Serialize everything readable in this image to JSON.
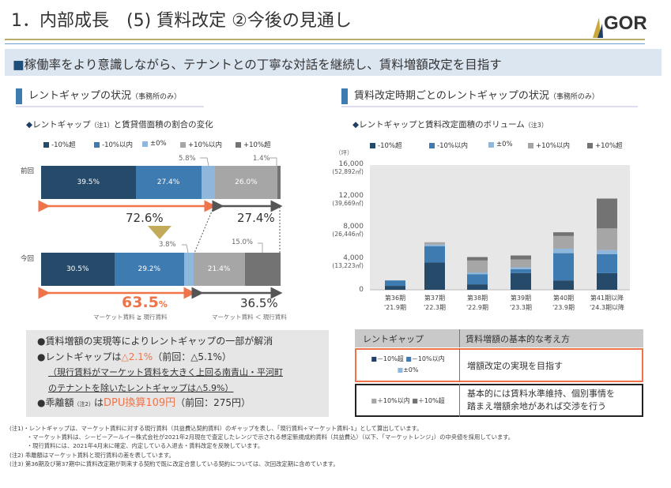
{
  "header": {
    "title": "1．内部成長　(5) 賃料改定 ②今後の見通し",
    "logo": "GOR"
  },
  "banner": {
    "marker": "■",
    "text": "稼働率をより意識しながら、テナントとの丁寧な対話を継続し、賃料増額改定を目指す"
  },
  "colors": {
    "lt10_over": "#264a6a",
    "lt10_within": "#3e7bb0",
    "zero": "#8fb7dc",
    "gt10_within": "#a6a6a6",
    "gt10_over": "#737373",
    "accent": "#f0744a"
  },
  "legend": [
    "-10%超",
    "-10%以内",
    "±0%",
    "+10%以内",
    "+10%超"
  ],
  "left": {
    "section_title": "レントギャップの状況",
    "section_note": "（事務所のみ）",
    "subtitle": "レントギャップ",
    "subtitle_note": "（注1）",
    "subtitle_rest": "と賃貸借面積の割合の変化",
    "rows": [
      {
        "label": "前回",
        "values": [
          39.5,
          27.4,
          5.8,
          26.0,
          1.4
        ],
        "labels": [
          "39.5%",
          "27.4%",
          "5.8%",
          "26.0%",
          "1.4%"
        ]
      },
      {
        "label": "今回",
        "values": [
          30.5,
          29.2,
          3.8,
          21.4,
          15.0
        ],
        "labels": [
          "30.5%",
          "29.2%",
          "3.8%",
          "21.4%",
          "15.0%"
        ]
      }
    ],
    "prev_below": "72.6%",
    "prev_above": "27.4%",
    "cur_below_num": "63.5",
    "cur_below_unit": "%",
    "cur_above": "36.5%",
    "cap_below": "マーケット賃料 ≧ 現行賃料",
    "cap_above": "マーケット賃料 ＜ 現行賃料"
  },
  "right": {
    "section_title": "賃料改定時期ごとのレントギャップの状況",
    "section_note": "（事務所のみ）",
    "subtitle": "レントギャップと賃料改定面積のボリューム",
    "subtitle_note": "（注3）"
  },
  "chart_data": {
    "type": "bar",
    "stacked": true,
    "ylabel": "（坪）",
    "ylim": [
      0,
      16000
    ],
    "yticks": [
      {
        "v": 0,
        "l": "0",
        "s": ""
      },
      {
        "v": 4000,
        "l": "4,000",
        "s": "(13,223㎡)"
      },
      {
        "v": 8000,
        "l": "8,000",
        "s": "(26,446㎡)"
      },
      {
        "v": 12000,
        "l": "12,000",
        "s": "(39,669㎡)"
      },
      {
        "v": 16000,
        "l": "16,000",
        "s": "(52,892㎡)"
      }
    ],
    "categories": [
      [
        "第36期",
        "'21.9期"
      ],
      [
        "第37期",
        "'22.3期"
      ],
      [
        "第38期",
        "'22.9期"
      ],
      [
        "第39期",
        "'23.3期"
      ],
      [
        "第40期",
        "'23.9期"
      ],
      [
        "第41期以降",
        "'24.3期以降"
      ]
    ],
    "series": [
      {
        "name": "-10%超",
        "values": [
          500,
          3500,
          700,
          2140,
          1200,
          2140
        ]
      },
      {
        "name": "-10%以内",
        "values": [
          700,
          2100,
          1300,
          500,
          3500,
          2440
        ]
      },
      {
        "name": "±0%",
        "values": [
          0,
          200,
          230,
          240,
          570,
          510
        ]
      },
      {
        "name": "+10%以内",
        "values": [
          0,
          300,
          1530,
          1020,
          1630,
          2780
        ]
      },
      {
        "name": "+10%超",
        "values": [
          0,
          0,
          440,
          500,
          480,
          3830
        ]
      }
    ]
  },
  "box": {
    "l1": "●賃料増額の実現等によりレントギャップの一部が解消",
    "l2a": "●レントギャップは",
    "l2b": "△2.1%",
    "l2c": "（前回：△5.1%）",
    "l3": "（現行賃料がマーケット賃料を大きく上回る南青山・平河町",
    "l4": "のテナントを除いたレントギャップは△5.9%）",
    "l5a": "●乖離額",
    "l5n": "（注2）",
    "l5b": "は",
    "l5c": "DPU換算109円",
    "l5d": "（前回：275円）"
  },
  "table": {
    "h1": "レントギャップ",
    "h2": "賃料増額の基本的な考え方",
    "r1a": "－10%超",
    "r1b": "－10%以内",
    "r1c": "±0%",
    "r1text": "増額改定の実現を目指す",
    "r2a": "＋10%以内",
    "r2b": "＋10%超",
    "r2text1": "基本的には賃料水準維持、個別事情を",
    "r2text2": "踏まえ増額余地があれば交渉を行う"
  },
  "notes": [
    "(注1)・レントギャップは、マーケット賃料に対する現行賃料（共益費込契約賃料）のギャップを表し、「現行賃料÷マーケット賃料-1」として算出しています。",
    "　　　・マーケット賃料は、シービーアールイー株式会社が2021年2月現在で査定したレンジで示される想定新規成約賃料（共益費込）（以下、「マーケットレンジ」）の中央値を採用しています。",
    "　　　・現行賃料には、2021年4月末に確定、内定している入退去・賃料改定を反映しています。",
    "(注2) 乖離額はマーケット賃料と現行賃料の差を表しています。",
    "(注3) 第36期及び第37期中に賃料改定期が到来する契約で既に改定合意している契約については、次回改定期に含めています。"
  ]
}
